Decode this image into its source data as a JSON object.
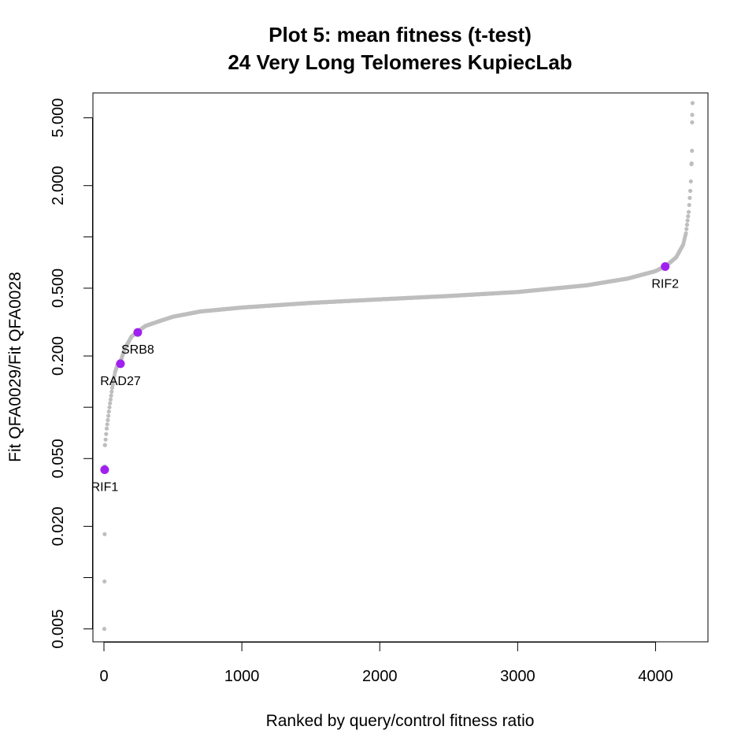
{
  "chart_data": {
    "type": "scatter",
    "title": "Plot 5: mean fitness (t-test)",
    "subtitle": "24 Very Long Telomeres  KupiecLab",
    "xlabel": "Ranked by query/control fitness ratio",
    "ylabel": "Fit QFA0029/Fit QFA0028",
    "y_scale": "log",
    "xlim": [
      -80,
      4380
    ],
    "ylim": [
      0.0042,
      7.0
    ],
    "x_ticks": [
      0,
      1000,
      2000,
      3000,
      4000
    ],
    "x_tick_labels": [
      "0",
      "1000",
      "2000",
      "3000",
      "4000"
    ],
    "y_ticks": [
      0.005,
      0.01,
      0.02,
      0.05,
      0.1,
      0.2,
      0.5,
      1.0,
      2.0,
      5.0
    ],
    "y_tick_labels": [
      "0.005",
      "",
      "0.020",
      "0.050",
      "",
      "0.200",
      "0.500",
      "",
      "2.000",
      "5.000"
    ],
    "grid": false,
    "point_color": "#bebebe",
    "highlight_color": "#a020f0",
    "background_series": {
      "name": "",
      "n_points": 4270,
      "curve_knots": [
        [
          0,
          0.005
        ],
        [
          1,
          0.01
        ],
        [
          2,
          0.018
        ],
        [
          5,
          0.045
        ],
        [
          8,
          0.06
        ],
        [
          20,
          0.075
        ],
        [
          40,
          0.1
        ],
        [
          60,
          0.13
        ],
        [
          80,
          0.16
        ],
        [
          100,
          0.18
        ],
        [
          125,
          0.19
        ],
        [
          150,
          0.22
        ],
        [
          200,
          0.26
        ],
        [
          250,
          0.28
        ],
        [
          300,
          0.3
        ],
        [
          400,
          0.32
        ],
        [
          500,
          0.34
        ],
        [
          700,
          0.365
        ],
        [
          1000,
          0.385
        ],
        [
          1500,
          0.41
        ],
        [
          2000,
          0.43
        ],
        [
          2500,
          0.45
        ],
        [
          3000,
          0.475
        ],
        [
          3500,
          0.52
        ],
        [
          3800,
          0.57
        ],
        [
          4000,
          0.63
        ],
        [
          4080,
          0.68
        ],
        [
          4150,
          0.76
        ],
        [
          4200,
          0.9
        ],
        [
          4220,
          1.05
        ],
        [
          4240,
          1.4
        ],
        [
          4255,
          2.0
        ],
        [
          4262,
          3.0
        ],
        [
          4267,
          4.5
        ],
        [
          4270,
          6.0
        ]
      ],
      "outliers": [
        {
          "x": 3,
          "y": 0.005
        },
        {
          "x": 4,
          "y": 0.0095
        },
        {
          "x": 5,
          "y": 0.018
        },
        {
          "x": 6,
          "y": 0.045
        },
        {
          "x": 7,
          "y": 0.06
        },
        {
          "x": 4262,
          "y": 2.7
        },
        {
          "x": 4264,
          "y": 3.2
        },
        {
          "x": 4265,
          "y": 4.7
        },
        {
          "x": 4266,
          "y": 5.2
        },
        {
          "x": 4268,
          "y": 6.1
        }
      ]
    },
    "highlighted_points": [
      {
        "name": "RIF1",
        "x": 5,
        "y": 0.043,
        "label_pos": "below"
      },
      {
        "name": "RAD27",
        "x": 120,
        "y": 0.18,
        "label_pos": "below"
      },
      {
        "name": "SRB8",
        "x": 245,
        "y": 0.275,
        "label_pos": "below"
      },
      {
        "name": "RIF2",
        "x": 4070,
        "y": 0.67,
        "label_pos": "below"
      }
    ]
  }
}
